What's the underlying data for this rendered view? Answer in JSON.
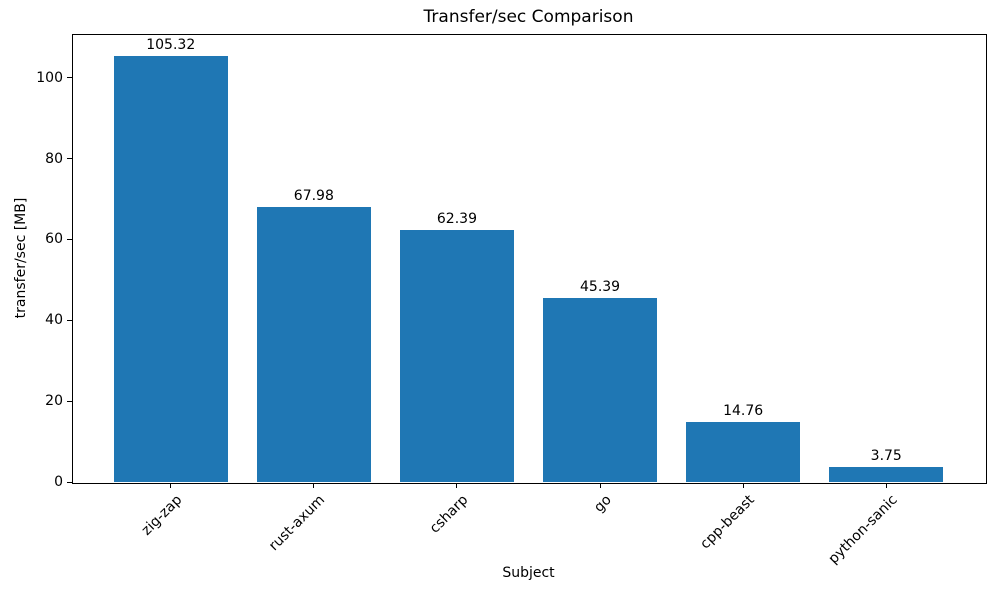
{
  "chart_data": {
    "type": "bar",
    "title": "Transfer/sec Comparison",
    "xlabel": "Subject",
    "ylabel": "transfer/sec [MB]",
    "categories": [
      "zig-zap",
      "rust-axum",
      "csharp",
      "go",
      "cpp-beast",
      "python-sanic"
    ],
    "values": [
      105.32,
      67.98,
      62.39,
      45.39,
      14.76,
      3.75
    ],
    "value_labels": [
      "105.32",
      "67.98",
      "62.39",
      "45.39",
      "14.76",
      "3.75"
    ],
    "bar_color": "#1f77b4",
    "axis_color": "#000000",
    "text_color": "#000000",
    "background_color": "#ffffff",
    "ylim": [
      0,
      110.8
    ],
    "yticks": [
      0,
      20,
      40,
      60,
      80,
      100
    ],
    "xlim": [
      -0.69,
      5.69
    ],
    "bar_width": 0.8,
    "x_tick_rotation_deg": 45,
    "grid": false,
    "legend": null
  }
}
